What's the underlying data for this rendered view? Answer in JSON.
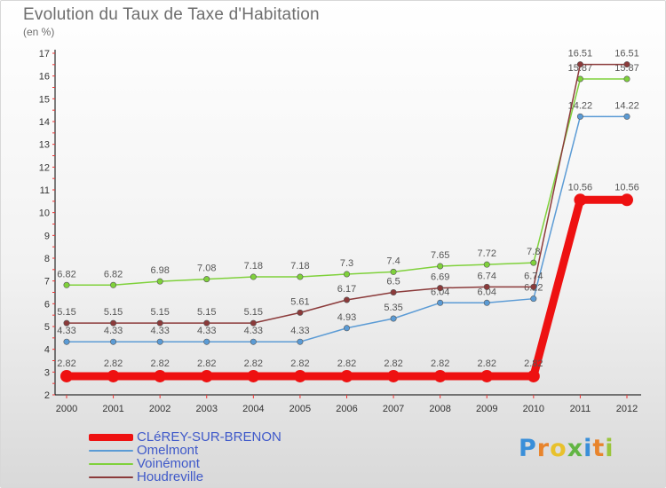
{
  "chart_data": {
    "type": "line",
    "title": "Evolution du Taux de Taxe d'Habitation",
    "unit_label": "(en %)",
    "x": [
      "2000",
      "2001",
      "2002",
      "2003",
      "2004",
      "2005",
      "2006",
      "2007",
      "2008",
      "2009",
      "2010",
      "2011",
      "2012"
    ],
    "ylim": [
      2,
      17
    ],
    "yticks": [
      2,
      3,
      4,
      5,
      6,
      7,
      8,
      9,
      10,
      11,
      12,
      13,
      14,
      15,
      16,
      17
    ],
    "grid": false,
    "legend_position": "bottom-left",
    "series": [
      {
        "name": "Voinémont",
        "color": "#7fd13b",
        "values": [
          6.82,
          6.82,
          6.98,
          7.08,
          7.18,
          7.18,
          7.3,
          7.4,
          7.65,
          7.72,
          7.8,
          15.87,
          15.87
        ],
        "labels": [
          "6.82",
          "6.82",
          "6.98",
          "7.08",
          "7.18",
          "7.18",
          "7.3",
          "7.4",
          "7.65",
          "7.72",
          "7.8",
          "15.87",
          "15.87"
        ]
      },
      {
        "name": "Omelmont",
        "color": "#5b9bd5",
        "values": [
          4.33,
          4.33,
          4.33,
          4.33,
          4.33,
          4.33,
          4.93,
          5.35,
          6.04,
          6.04,
          6.22,
          14.22,
          14.22
        ],
        "labels": [
          "4.33",
          "4.33",
          "4.33",
          "4.33",
          "4.33",
          "4.33",
          "4.93",
          "5.35",
          "6.04",
          "6.04",
          "6.22",
          "14.22",
          "14.22"
        ]
      },
      {
        "name": "Houdreville",
        "color": "#8b3a3a",
        "values": [
          5.15,
          5.15,
          5.15,
          5.15,
          5.15,
          5.61,
          6.17,
          6.5,
          6.69,
          6.74,
          6.74,
          16.51,
          16.51
        ],
        "labels": [
          "5.15",
          "5.15",
          "5.15",
          "5.15",
          "5.15",
          "5.61",
          "6.17",
          "6.5",
          "6.69",
          "6.74",
          "6.74",
          "16.51",
          "16.51"
        ]
      },
      {
        "name": "CLéREY-SUR-BRENON",
        "color": "#ee1111",
        "values": [
          2.82,
          2.82,
          2.82,
          2.82,
          2.82,
          2.82,
          2.82,
          2.82,
          2.82,
          2.82,
          2.82,
          10.56,
          10.56
        ],
        "labels": [
          "2.82",
          "2.82",
          "2.82",
          "2.82",
          "2.82",
          "2.82",
          "2.82",
          "2.82",
          "2.82",
          "2.82",
          "2.82",
          "10.56",
          "10.56"
        ]
      }
    ]
  },
  "legend": [
    {
      "label": "CLéREY-SUR-BRENON",
      "color": "#ee1111"
    },
    {
      "label": "Omelmont",
      "color": "#5b9bd5"
    },
    {
      "label": "Voinémont",
      "color": "#7fd13b"
    },
    {
      "label": "Houdreville",
      "color": "#8b3a3a"
    }
  ],
  "logo": {
    "text": "Proxiti",
    "letters": [
      {
        "ch": "P",
        "color": "#3a8fd9"
      },
      {
        "ch": "r",
        "color": "#e8842c"
      },
      {
        "ch": "o",
        "color": "#e8c12c"
      },
      {
        "ch": "x",
        "color": "#62b544"
      },
      {
        "ch": "i",
        "color": "#3a8fd9"
      },
      {
        "ch": "t",
        "color": "#e8842c"
      },
      {
        "ch": "i",
        "color": "#9bc53d"
      }
    ]
  }
}
